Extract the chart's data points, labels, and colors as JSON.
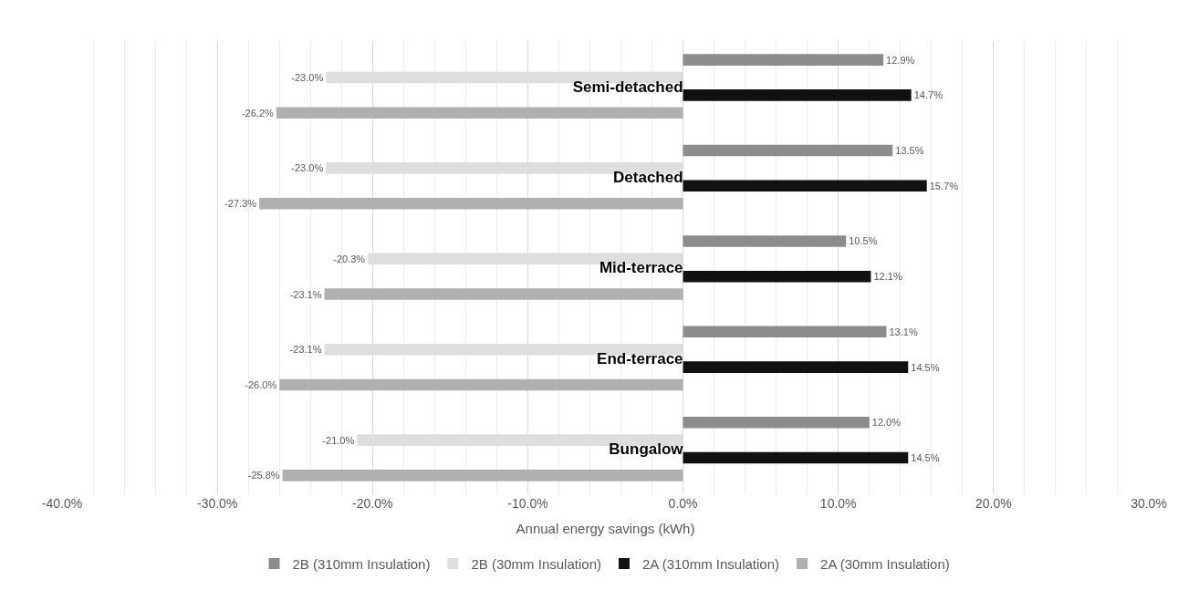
{
  "chart_data": {
    "type": "bar",
    "orientation": "horizontal",
    "xlabel": "Annual energy savings (kWh)",
    "categories": [
      "Semi-detached",
      "Detached",
      "Mid-terrace",
      "End-terrace",
      "Bungalow"
    ],
    "series": [
      {
        "name": "2B (310mm Insulation)",
        "color": "#8c8c8c",
        "values": [
          12.9,
          13.5,
          10.5,
          13.1,
          12.0
        ],
        "value_labels": [
          "12.9%",
          "13.5%",
          "10.5%",
          "13.1%",
          "12.0%"
        ]
      },
      {
        "name": "2B (30mm Insulation)",
        "color": "#dedede",
        "values": [
          -23.0,
          -23.0,
          -20.3,
          -23.1,
          -21.0
        ],
        "value_labels": [
          "-23.0%",
          "-23.0%",
          "-20.3%",
          "-23.1%",
          "-21.0%"
        ]
      },
      {
        "name": "2A (310mm Insulation)",
        "color": "#111111",
        "values": [
          14.7,
          15.7,
          12.1,
          14.5,
          14.5
        ],
        "value_labels": [
          "14.7%",
          "15.7%",
          "12.1%",
          "14.5%",
          "14.5%"
        ]
      },
      {
        "name": "2A (30mm Insulation)",
        "color": "#b0b0b0",
        "values": [
          -26.2,
          -27.3,
          -23.1,
          -26.0,
          -25.8
        ],
        "value_labels": [
          "-26.2%",
          "-27.3%",
          "-23.1%",
          "-26.0%",
          "-25.8%"
        ]
      }
    ],
    "xlim": [
      -40,
      30
    ],
    "xticks": [
      {
        "value": -40,
        "label": "-40.0%"
      },
      {
        "value": -30,
        "label": "-30.0%"
      },
      {
        "value": -20,
        "label": "-20.0%"
      },
      {
        "value": -10,
        "label": "-10.0%"
      },
      {
        "value": 0,
        "label": "0.0%"
      },
      {
        "value": 10,
        "label": "10.0%"
      },
      {
        "value": 20,
        "label": "20.0%"
      },
      {
        "value": 30,
        "label": "30.0%"
      }
    ],
    "grid": "x",
    "legend": "bottom"
  }
}
